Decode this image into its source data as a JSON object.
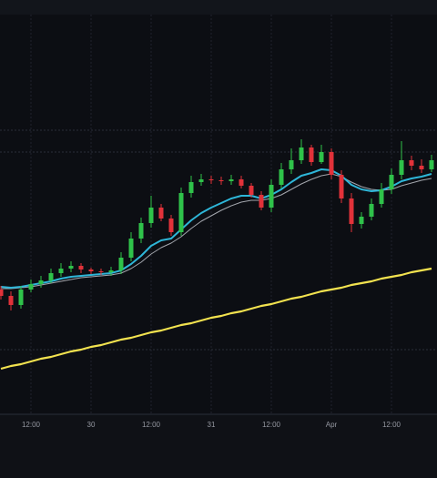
{
  "chart_data": {
    "type": "candlestick",
    "categories": [
      null,
      null,
      null,
      "12:00",
      null,
      null,
      null,
      null,
      null,
      "30",
      null,
      null,
      null,
      null,
      null,
      "12:00",
      null,
      null,
      null,
      null,
      null,
      "31",
      null,
      null,
      null,
      null,
      null,
      "12:00",
      null,
      null,
      null,
      null,
      null,
      "Apr",
      null,
      null,
      null,
      null,
      null,
      "12:00",
      null,
      null,
      null,
      null
    ],
    "open": [
      137,
      130,
      120,
      137,
      143,
      147,
      155,
      160,
      163,
      159,
      157,
      156,
      158,
      172,
      193,
      210,
      227,
      215,
      200,
      243,
      255,
      258,
      257,
      256,
      258,
      251,
      241,
      227,
      252,
      269,
      279,
      293,
      277,
      288,
      263,
      237,
      209,
      217,
      231,
      247,
      263,
      279,
      273,
      269
    ],
    "high": [
      141,
      135,
      141,
      148,
      152,
      160,
      166,
      168,
      166,
      161,
      160,
      162,
      178,
      200,
      216,
      240,
      231,
      219,
      249,
      262,
      264,
      262,
      261,
      263,
      262,
      254,
      245,
      258,
      276,
      292,
      302,
      296,
      296,
      292,
      268,
      243,
      222,
      237,
      254,
      270,
      300,
      284,
      280,
      285
    ],
    "low": [
      126,
      114,
      116,
      134,
      139,
      144,
      151,
      156,
      155,
      154,
      153,
      152,
      154,
      168,
      188,
      205,
      212,
      196,
      196,
      238,
      251,
      253,
      252,
      252,
      248,
      238,
      224,
      222,
      248,
      264,
      275,
      273,
      275,
      258,
      232,
      200,
      204,
      213,
      227,
      242,
      258,
      268,
      265,
      266
    ],
    "close": [
      130,
      120,
      137,
      143,
      147,
      155,
      160,
      163,
      159,
      157,
      156,
      158,
      172,
      193,
      210,
      227,
      215,
      200,
      243,
      255,
      258,
      257,
      256,
      258,
      251,
      241,
      227,
      252,
      269,
      279,
      293,
      277,
      288,
      263,
      237,
      209,
      217,
      231,
      247,
      263,
      279,
      273,
      269,
      279
    ],
    "up_color": "#2fc24a",
    "down_color": "#e2323a",
    "lines": [
      {
        "color": "#f2e24f",
        "values": [
          50,
          53,
          55,
          58,
          61,
          63,
          66,
          69,
          71,
          74,
          76,
          79,
          82,
          84,
          87,
          90,
          92,
          95,
          98,
          100,
          103,
          106,
          108,
          111,
          113,
          116,
          119,
          121,
          124,
          127,
          129,
          132,
          135,
          137,
          139,
          142,
          144,
          146,
          149,
          151,
          153,
          156,
          158,
          160
        ]
      },
      {
        "color": "#a3a6ad",
        "values": [
          138,
          138,
          139,
          140,
          142,
          144,
          146,
          148,
          150,
          151,
          152,
          153,
          155,
          160,
          167,
          176,
          183,
          188,
          195,
          204,
          212,
          218,
          224,
          229,
          233,
          235,
          235,
          237,
          241,
          247,
          253,
          258,
          262,
          264,
          261,
          255,
          250,
          247,
          246,
          247,
          251,
          254,
          257,
          259
        ]
      },
      {
        "color": "#2eb6d8",
        "values": [
          140,
          139,
          140,
          142,
          144,
          146,
          149,
          151,
          152,
          153,
          154,
          155,
          158,
          165,
          174,
          185,
          191,
          193,
          203,
          213,
          221,
          227,
          232,
          237,
          240,
          240,
          237,
          241,
          247,
          255,
          262,
          265,
          269,
          268,
          262,
          252,
          247,
          245,
          246,
          250,
          256,
          259,
          261,
          264
        ]
      }
    ],
    "ylim": [
      0,
      455
    ],
    "ygrid": [
      312,
      288,
      71
    ],
    "grid": true
  }
}
